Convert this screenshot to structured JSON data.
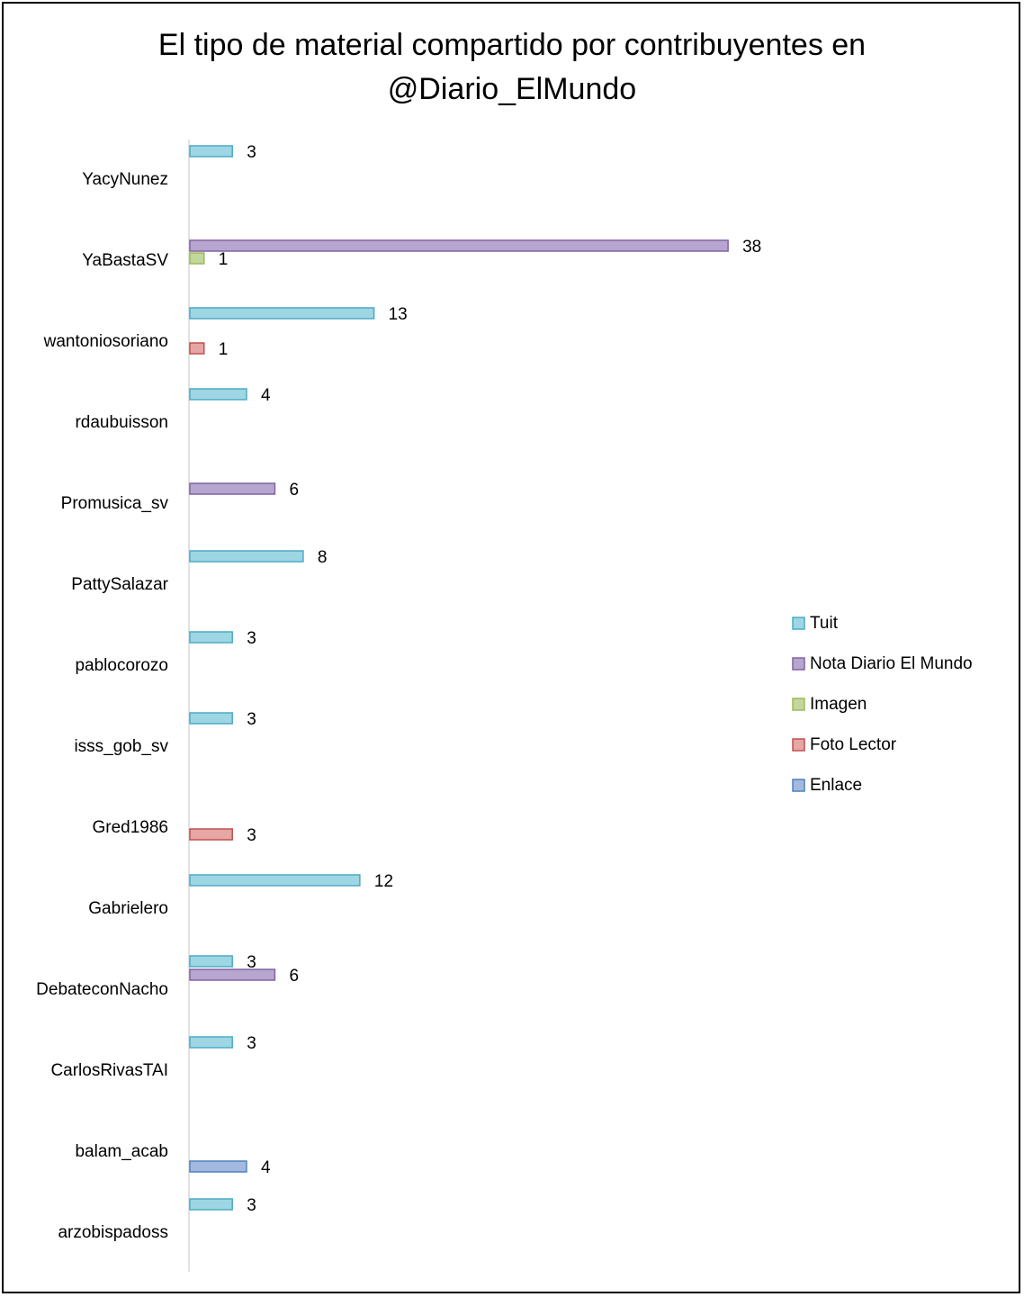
{
  "chart_data": {
    "type": "bar",
    "orientation": "horizontal",
    "title": "El tipo de material compartido por contribuyentes en @Diario_ElMundo",
    "title_lines": [
      "El tipo de material compartido por contribuyentes en",
      "@Diario_ElMundo"
    ],
    "categories": [
      "YacyNunez",
      "YaBastaSV",
      "wantoniosoriano",
      "rdaubuisson",
      "Promusica_sv",
      "PattySalazar",
      "pablocorozo",
      "isss_gob_sv",
      "Gred1986",
      "Gabrielero",
      "DebateconNacho",
      "CarlosRivasTAI",
      "balam_acab",
      "arzobispadoss"
    ],
    "series": [
      {
        "name": "Tuit",
        "color": "#9fd6e4",
        "stroke": "#4bacc6",
        "values": [
          3,
          0,
          13,
          4,
          0,
          8,
          3,
          3,
          0,
          12,
          3,
          3,
          0,
          3
        ]
      },
      {
        "name": "Nota Diario El Mundo",
        "color": "#b7a6cf",
        "stroke": "#8064a2",
        "values": [
          0,
          38,
          0,
          0,
          6,
          0,
          0,
          0,
          0,
          0,
          6,
          0,
          0,
          0
        ]
      },
      {
        "name": "Imagen",
        "color": "#c3d69b",
        "stroke": "#9bbb59",
        "values": [
          0,
          1,
          0,
          0,
          0,
          0,
          0,
          0,
          0,
          0,
          0,
          0,
          0,
          0
        ]
      },
      {
        "name": "Foto Lector",
        "color": "#e6a6a4",
        "stroke": "#c0504d",
        "values": [
          0,
          0,
          1,
          0,
          0,
          0,
          0,
          0,
          3,
          0,
          0,
          0,
          0,
          0
        ]
      },
      {
        "name": "Enlace",
        "color": "#a4b9e0",
        "stroke": "#4f81bd",
        "values": [
          0,
          0,
          0,
          0,
          0,
          0,
          0,
          0,
          0,
          0,
          0,
          0,
          4,
          0
        ]
      }
    ],
    "legend_position": "right",
    "grid": false,
    "xlim": [
      0,
      38
    ]
  }
}
